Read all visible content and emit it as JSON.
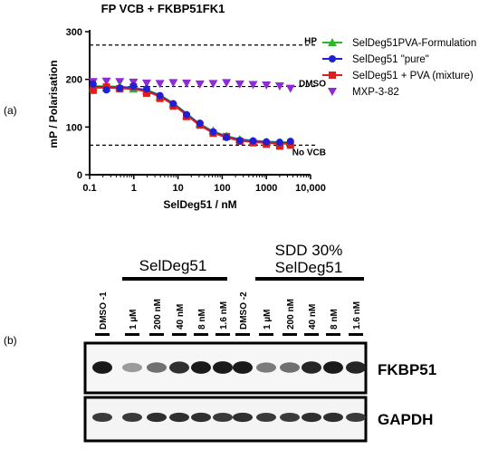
{
  "panel_a_label": "(a)",
  "panel_b_label": "(b)",
  "chart_data": {
    "type": "scatter",
    "title": "FP VCB + FKBP51FK1",
    "xlabel": "SelDeg51 / nM",
    "ylabel": "mP / Polarisation",
    "x_scale": "log",
    "xlim": [
      0.1,
      10000
    ],
    "ylim": [
      0,
      300
    ],
    "x_ticks": [
      "0.1",
      "1",
      "10",
      "100",
      "1000",
      "10,000"
    ],
    "y_ticks": [
      "0",
      "100",
      "200",
      "300"
    ],
    "grid": false,
    "legend_position": "top-right",
    "reference_lines": [
      {
        "label": "HP",
        "y": 272
      },
      {
        "label": "DMSO",
        "y": 185
      },
      {
        "label": "No VCB",
        "y": 62
      }
    ],
    "x": [
      0.12,
      0.24,
      0.48,
      0.98,
      1.95,
      3.9,
      7.8,
      15.6,
      31.3,
      62.5,
      125,
      250,
      500,
      1000,
      2000,
      3500
    ],
    "fit_x": [
      0.1,
      0.2,
      0.5,
      1,
      2,
      4,
      8,
      16,
      30,
      60,
      120,
      250,
      500,
      1000,
      2000,
      3500
    ],
    "fit_y": [
      184,
      184,
      183,
      181,
      176,
      165,
      148,
      126,
      106,
      90,
      80,
      73,
      70,
      68,
      67,
      66
    ],
    "series": [
      {
        "name": "SelDeg51PVA-Formulation",
        "color": "#2db52d",
        "marker": "triangle-up",
        "fit": true,
        "values": [
          183,
          182,
          184,
          180,
          176,
          163,
          148,
          124,
          107,
          92,
          81,
          74,
          70,
          68,
          66,
          67
        ]
      },
      {
        "name": "SelDeg51 \"pure\"",
        "color": "#1f1fd6",
        "marker": "circle",
        "fit": true,
        "values": [
          190,
          178,
          182,
          186,
          180,
          166,
          149,
          126,
          108,
          90,
          78,
          72,
          71,
          69,
          68,
          70
        ]
      },
      {
        "name": "SelDeg51 + PVA (mixture)",
        "color": "#e21b1b",
        "marker": "square",
        "fit": true,
        "values": [
          177,
          184,
          180,
          184,
          171,
          160,
          144,
          122,
          104,
          87,
          80,
          70,
          67,
          64,
          60,
          62
        ]
      },
      {
        "name": "MXP-3-82",
        "color": "#8e2bd6",
        "marker": "triangle-down",
        "fit": false,
        "values": [
          195,
          196,
          195,
          194,
          192,
          191,
          193,
          192,
          190,
          191,
          193,
          190,
          189,
          188,
          186,
          181
        ]
      }
    ]
  },
  "blot": {
    "group1_label": "SelDeg51",
    "group2_label_line1": "SDD 30%",
    "group2_label_line2": "SelDeg51",
    "lanes": [
      "DMSO -1",
      "1 µM",
      "200 nM",
      "40 nM",
      "8 nM",
      "1.6 nM",
      "DMSO -2",
      "1 µM",
      "200 nM",
      "40 nM",
      "8 nM",
      "1.6 nM"
    ],
    "fkbp51_label": "FKBP51",
    "gapdh_label": "GAPDH",
    "fkbp51_intensity": [
      0.95,
      0.35,
      0.55,
      0.85,
      0.95,
      0.95,
      0.95,
      0.5,
      0.55,
      0.9,
      0.95,
      0.9
    ],
    "gapdh_intensity": [
      0.8,
      0.8,
      0.85,
      0.85,
      0.85,
      0.8,
      0.85,
      0.8,
      0.8,
      0.85,
      0.85,
      0.8
    ]
  }
}
